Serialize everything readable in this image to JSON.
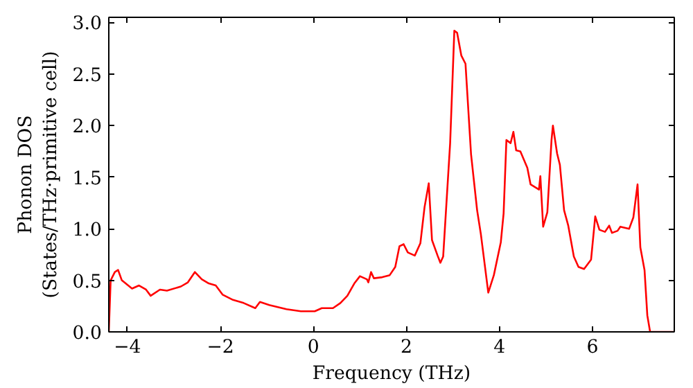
{
  "chart_data": {
    "type": "line",
    "xlabel": "Frequency (THz)",
    "ylabel": "Phonon DOS\n(States/THz·primitive cell)",
    "x": [
      -4.4,
      -4.36,
      -4.27,
      -4.2,
      -4.12,
      -3.9,
      -3.75,
      -3.6,
      -3.5,
      -3.3,
      -3.15,
      -2.85,
      -2.7,
      -2.55,
      -2.4,
      -2.25,
      -2.1,
      -1.95,
      -1.73,
      -1.5,
      -1.25,
      -1.15,
      -0.95,
      -0.58,
      -0.27,
      0.03,
      0.18,
      0.42,
      0.58,
      0.73,
      0.88,
      1.0,
      1.15,
      1.18,
      1.24,
      1.3,
      1.48,
      1.64,
      1.76,
      1.85,
      1.94,
      2.03,
      2.18,
      2.3,
      2.39,
      2.48,
      2.55,
      2.67,
      2.73,
      2.79,
      2.94,
      3.03,
      3.09,
      3.18,
      3.27,
      3.39,
      3.52,
      3.6,
      3.76,
      3.88,
      4.03,
      4.09,
      4.15,
      4.24,
      4.3,
      4.36,
      4.45,
      4.6,
      4.67,
      4.85,
      4.88,
      4.94,
      5.03,
      5.12,
      5.15,
      5.24,
      5.3,
      5.39,
      5.48,
      5.6,
      5.7,
      5.82,
      5.97,
      6.06,
      6.15,
      6.27,
      6.36,
      6.42,
      6.54,
      6.6,
      6.79,
      6.88,
      6.97,
      7.03,
      7.12,
      7.18,
      7.24,
      7.76
    ],
    "values": [
      0.0,
      0.5,
      0.58,
      0.6,
      0.5,
      0.42,
      0.45,
      0.41,
      0.35,
      0.41,
      0.4,
      0.44,
      0.48,
      0.58,
      0.51,
      0.47,
      0.45,
      0.36,
      0.31,
      0.28,
      0.23,
      0.29,
      0.26,
      0.22,
      0.2,
      0.2,
      0.23,
      0.23,
      0.28,
      0.35,
      0.47,
      0.54,
      0.51,
      0.48,
      0.58,
      0.52,
      0.53,
      0.55,
      0.63,
      0.83,
      0.85,
      0.77,
      0.74,
      0.86,
      1.21,
      1.44,
      0.89,
      0.74,
      0.67,
      0.73,
      1.83,
      2.92,
      2.9,
      2.68,
      2.6,
      1.72,
      1.18,
      0.95,
      0.38,
      0.55,
      0.87,
      1.15,
      1.86,
      1.83,
      1.94,
      1.76,
      1.75,
      1.59,
      1.43,
      1.38,
      1.51,
      1.02,
      1.16,
      1.86,
      2.0,
      1.73,
      1.62,
      1.18,
      1.03,
      0.73,
      0.63,
      0.61,
      0.7,
      1.12,
      0.99,
      0.97,
      1.03,
      0.96,
      0.98,
      1.02,
      1.0,
      1.11,
      1.43,
      0.82,
      0.6,
      0.16,
      0.0,
      0.0
    ],
    "color": "#ff0000",
    "xlim": [
      -4.4,
      7.76
    ],
    "ylim": [
      0,
      3.05
    ],
    "xticks": [
      -4,
      -2,
      0,
      2,
      4,
      6
    ],
    "yticks": [
      {
        "value": 0,
        "label": "0.0"
      },
      {
        "value": 0.5,
        "label": "0.5"
      },
      {
        "value": 1,
        "label": "1.0"
      },
      {
        "value": 1.5,
        "label": "1.5"
      },
      {
        "value": 2,
        "label": "2.0"
      },
      {
        "value": 2.5,
        "label": "2.5"
      },
      {
        "value": 3,
        "label": "3.0"
      }
    ],
    "grid": false,
    "line_style": "solid"
  }
}
